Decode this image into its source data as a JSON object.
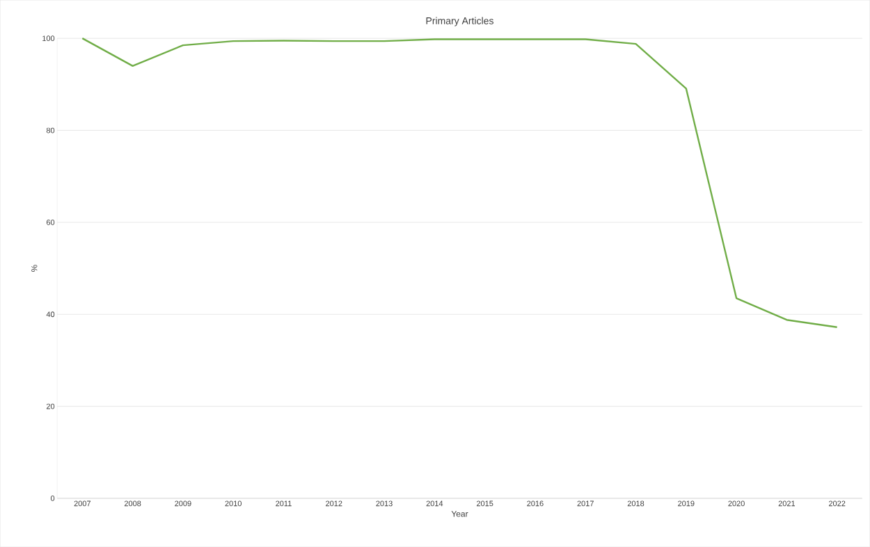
{
  "chart_data": {
    "type": "line",
    "title": "Primary Articles",
    "xlabel": "Year",
    "ylabel": "%",
    "categories": [
      "2007",
      "2008",
      "2009",
      "2010",
      "2011",
      "2012",
      "2013",
      "2014",
      "2015",
      "2016",
      "2017",
      "2018",
      "2019",
      "2020",
      "2021",
      "2022"
    ],
    "series": [
      {
        "color": "#70ad47",
        "values": [
          100,
          94.0,
          98.5,
          99.4,
          99.5,
          99.4,
          99.4,
          99.8,
          99.8,
          99.8,
          99.8,
          98.8,
          89.1,
          43.5,
          38.8,
          37.2
        ]
      }
    ],
    "ylim": [
      0,
      100
    ],
    "yticks": [
      0,
      20,
      40,
      60,
      80,
      100
    ],
    "grid": "y",
    "marker": "none",
    "line_style": "solid",
    "legend": false
  }
}
